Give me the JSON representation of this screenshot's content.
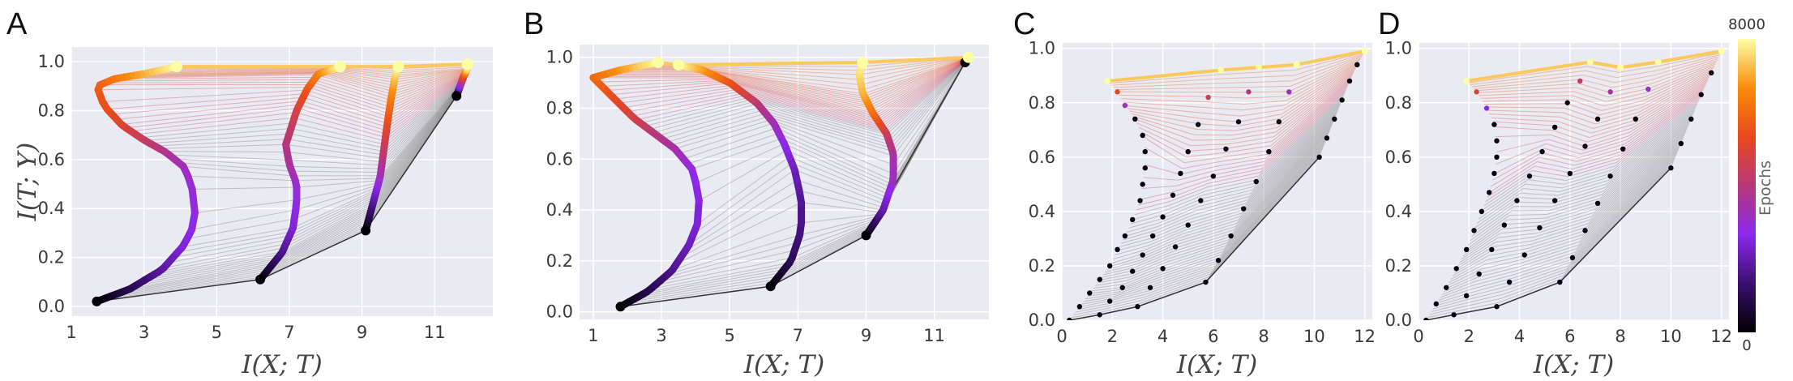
{
  "chart_data": [
    {
      "type": "line",
      "panel_label": "A",
      "xlabel": "I(X; T)",
      "ylabel": "I(T; Y)",
      "xlim": [
        1,
        12.6
      ],
      "ylim": [
        -0.04,
        1.06
      ],
      "xticks": [
        "1",
        "3",
        "5",
        "7",
        "9",
        "11"
      ],
      "yticks": [
        "0.0",
        "0.2",
        "0.4",
        "0.6",
        "0.8",
        "1.0"
      ],
      "grid": true,
      "marker_style": "dense",
      "start_points": {
        "x": [
          1.7,
          6.2,
          9.1,
          11.6
        ],
        "y": [
          0.02,
          0.11,
          0.31,
          0.86
        ]
      },
      "series": [
        {
          "x": [
            1.7,
            2.6,
            3.5,
            4.1,
            4.4,
            4.4,
            4.3,
            4.1,
            3.6,
            3.0,
            2.4,
            1.9,
            1.7,
            2.2,
            3.0,
            3.9
          ],
          "y": [
            0.02,
            0.07,
            0.15,
            0.25,
            0.34,
            0.42,
            0.5,
            0.57,
            0.63,
            0.68,
            0.74,
            0.82,
            0.9,
            0.93,
            0.95,
            0.98
          ]
        },
        {
          "x": [
            6.2,
            6.8,
            7.1,
            7.2,
            7.2,
            7.0,
            6.9,
            7.2,
            7.5,
            7.8,
            8.4
          ],
          "y": [
            0.11,
            0.22,
            0.32,
            0.42,
            0.5,
            0.58,
            0.66,
            0.8,
            0.89,
            0.95,
            0.98
          ]
        },
        {
          "x": [
            9.1,
            9.3,
            9.5,
            9.6,
            9.7,
            9.8,
            9.9,
            10.0
          ],
          "y": [
            0.31,
            0.42,
            0.53,
            0.64,
            0.75,
            0.85,
            0.93,
            0.98
          ]
        },
        {
          "x": [
            11.6,
            11.7,
            11.8,
            11.9,
            11.9
          ],
          "y": [
            0.86,
            0.9,
            0.94,
            0.97,
            0.99
          ]
        }
      ]
    },
    {
      "type": "line",
      "panel_label": "B",
      "xlabel": "I(X; T)",
      "ylabel": "",
      "xlim": [
        0.6,
        12.6
      ],
      "ylim": [
        -0.03,
        1.05
      ],
      "xticks": [
        "1",
        "3",
        "5",
        "7",
        "9",
        "11"
      ],
      "yticks": [
        "0.0",
        "0.2",
        "0.4",
        "0.6",
        "0.8",
        "1.0"
      ],
      "grid": true,
      "marker_style": "dense",
      "start_points": {
        "x": [
          1.8,
          6.2,
          9.0,
          11.9
        ],
        "y": [
          0.02,
          0.1,
          0.3,
          0.98
        ]
      },
      "series": [
        {
          "x": [
            1.8,
            2.6,
            3.3,
            3.8,
            4.1,
            4.1,
            3.9,
            3.4,
            2.8,
            2.2,
            1.6,
            1.0,
            1.8,
            2.9
          ],
          "y": [
            0.02,
            0.08,
            0.16,
            0.26,
            0.36,
            0.46,
            0.56,
            0.64,
            0.7,
            0.76,
            0.84,
            0.92,
            0.95,
            0.98
          ]
        },
        {
          "x": [
            6.2,
            6.8,
            7.1,
            7.1,
            6.9,
            6.6,
            6.3,
            5.8,
            5.0,
            4.2,
            3.5
          ],
          "y": [
            0.1,
            0.2,
            0.32,
            0.44,
            0.56,
            0.66,
            0.74,
            0.82,
            0.9,
            0.95,
            0.97
          ]
        },
        {
          "x": [
            9.0,
            9.5,
            9.8,
            9.8,
            9.6,
            9.2,
            8.9,
            8.8,
            8.9
          ],
          "y": [
            0.3,
            0.4,
            0.52,
            0.62,
            0.7,
            0.78,
            0.86,
            0.93,
            0.98
          ]
        },
        {
          "x": [
            11.9,
            11.95,
            12.0
          ],
          "y": [
            0.98,
            0.99,
            1.0
          ]
        }
      ]
    },
    {
      "type": "scatter",
      "panel_label": "C",
      "xlabel": "I(X; T)",
      "ylabel": "",
      "xlim": [
        0,
        12.3
      ],
      "ylim": [
        0,
        1.02
      ],
      "xticks": [
        "0",
        "2",
        "4",
        "6",
        "8",
        "10",
        "12"
      ],
      "yticks": [
        "0.0",
        "0.2",
        "0.4",
        "0.6",
        "0.8",
        "1.0"
      ],
      "grid": true,
      "marker_style": "sparse",
      "start_points": {
        "x": [
          0.3,
          1.5,
          3.0,
          5.7,
          10.2
        ],
        "y": [
          0.0,
          0.02,
          0.05,
          0.14,
          0.6
        ]
      },
      "series": [
        {
          "x": [
            0.3,
            0.7,
            1.1,
            1.5,
            1.9,
            2.2,
            2.5,
            2.8,
            3.1,
            3.2,
            3.3,
            3.3,
            3.2,
            2.9,
            2.5,
            2.2,
            1.8
          ],
          "y": [
            0.0,
            0.05,
            0.1,
            0.15,
            0.2,
            0.26,
            0.31,
            0.37,
            0.44,
            0.5,
            0.56,
            0.62,
            0.68,
            0.74,
            0.79,
            0.84,
            0.88
          ]
        },
        {
          "x": [
            1.5,
            1.9,
            2.4,
            2.8,
            3.2,
            3.6,
            4.0,
            4.4,
            4.7,
            5.0,
            5.4,
            5.8,
            6.3
          ],
          "y": [
            0.02,
            0.07,
            0.12,
            0.18,
            0.24,
            0.31,
            0.38,
            0.46,
            0.54,
            0.62,
            0.72,
            0.82,
            0.92
          ]
        },
        {
          "x": [
            3.0,
            3.5,
            4.0,
            4.5,
            5.0,
            5.5,
            6.0,
            6.5,
            7.0,
            7.4,
            7.8
          ],
          "y": [
            0.05,
            0.12,
            0.19,
            0.27,
            0.35,
            0.44,
            0.53,
            0.63,
            0.73,
            0.84,
            0.93
          ]
        },
        {
          "x": [
            5.7,
            6.2,
            6.7,
            7.2,
            7.7,
            8.2,
            8.6,
            9.0,
            9.3
          ],
          "y": [
            0.14,
            0.22,
            0.31,
            0.41,
            0.51,
            0.62,
            0.73,
            0.84,
            0.94
          ]
        },
        {
          "x": [
            10.2,
            10.5,
            10.8,
            11.1,
            11.4,
            11.7,
            12.0
          ],
          "y": [
            0.6,
            0.67,
            0.74,
            0.81,
            0.88,
            0.94,
            0.99
          ]
        }
      ]
    },
    {
      "type": "scatter",
      "panel_label": "D",
      "xlabel": "I(X; T)",
      "ylabel": "",
      "xlim": [
        0,
        12.3
      ],
      "ylim": [
        0,
        1.02
      ],
      "xticks": [
        "0",
        "2",
        "4",
        "6",
        "8",
        "10",
        "12"
      ],
      "yticks": [
        "0.0",
        "0.2",
        "0.4",
        "0.6",
        "0.8",
        "1.0"
      ],
      "grid": true,
      "marker_style": "sparse",
      "start_points": {
        "x": [
          0.3,
          1.4,
          3.1,
          5.6,
          10.0
        ],
        "y": [
          0.0,
          0.02,
          0.05,
          0.14,
          0.56
        ]
      },
      "series": [
        {
          "x": [
            0.3,
            0.7,
            1.1,
            1.5,
            1.9,
            2.2,
            2.5,
            2.8,
            3.0,
            3.1,
            3.1,
            3.0,
            2.7,
            2.3,
            1.9
          ],
          "y": [
            0.0,
            0.06,
            0.12,
            0.19,
            0.26,
            0.33,
            0.4,
            0.47,
            0.54,
            0.6,
            0.66,
            0.72,
            0.78,
            0.84,
            0.88
          ]
        },
        {
          "x": [
            1.4,
            1.9,
            2.4,
            2.9,
            3.4,
            3.9,
            4.4,
            4.9,
            5.4,
            5.9,
            6.4,
            6.8
          ],
          "y": [
            0.02,
            0.09,
            0.17,
            0.26,
            0.35,
            0.44,
            0.53,
            0.62,
            0.71,
            0.8,
            0.88,
            0.95
          ]
        },
        {
          "x": [
            3.1,
            3.6,
            4.2,
            4.8,
            5.4,
            6.0,
            6.6,
            7.1,
            7.6,
            8.0
          ],
          "y": [
            0.05,
            0.14,
            0.24,
            0.34,
            0.44,
            0.54,
            0.64,
            0.74,
            0.84,
            0.93
          ]
        },
        {
          "x": [
            5.6,
            6.1,
            6.6,
            7.1,
            7.6,
            8.1,
            8.6,
            9.1,
            9.5
          ],
          "y": [
            0.14,
            0.23,
            0.33,
            0.43,
            0.53,
            0.63,
            0.74,
            0.85,
            0.95
          ]
        },
        {
          "x": [
            10.0,
            10.4,
            10.8,
            11.2,
            11.6,
            12.0
          ],
          "y": [
            0.56,
            0.65,
            0.74,
            0.83,
            0.91,
            0.99
          ]
        }
      ]
    }
  ],
  "colorbar": {
    "label": "Epochs",
    "min_label": "0",
    "max_label": "8000",
    "colormap_stops": [
      "#000004",
      "#3b0f70",
      "#8c29ec",
      "#b73779",
      "#e8491c",
      "#f98c0a",
      "#fcffa4"
    ]
  },
  "colors": {
    "panel_background": "#e9eaf2",
    "grid": "#ffffff",
    "connector": "#8a8a8a"
  }
}
